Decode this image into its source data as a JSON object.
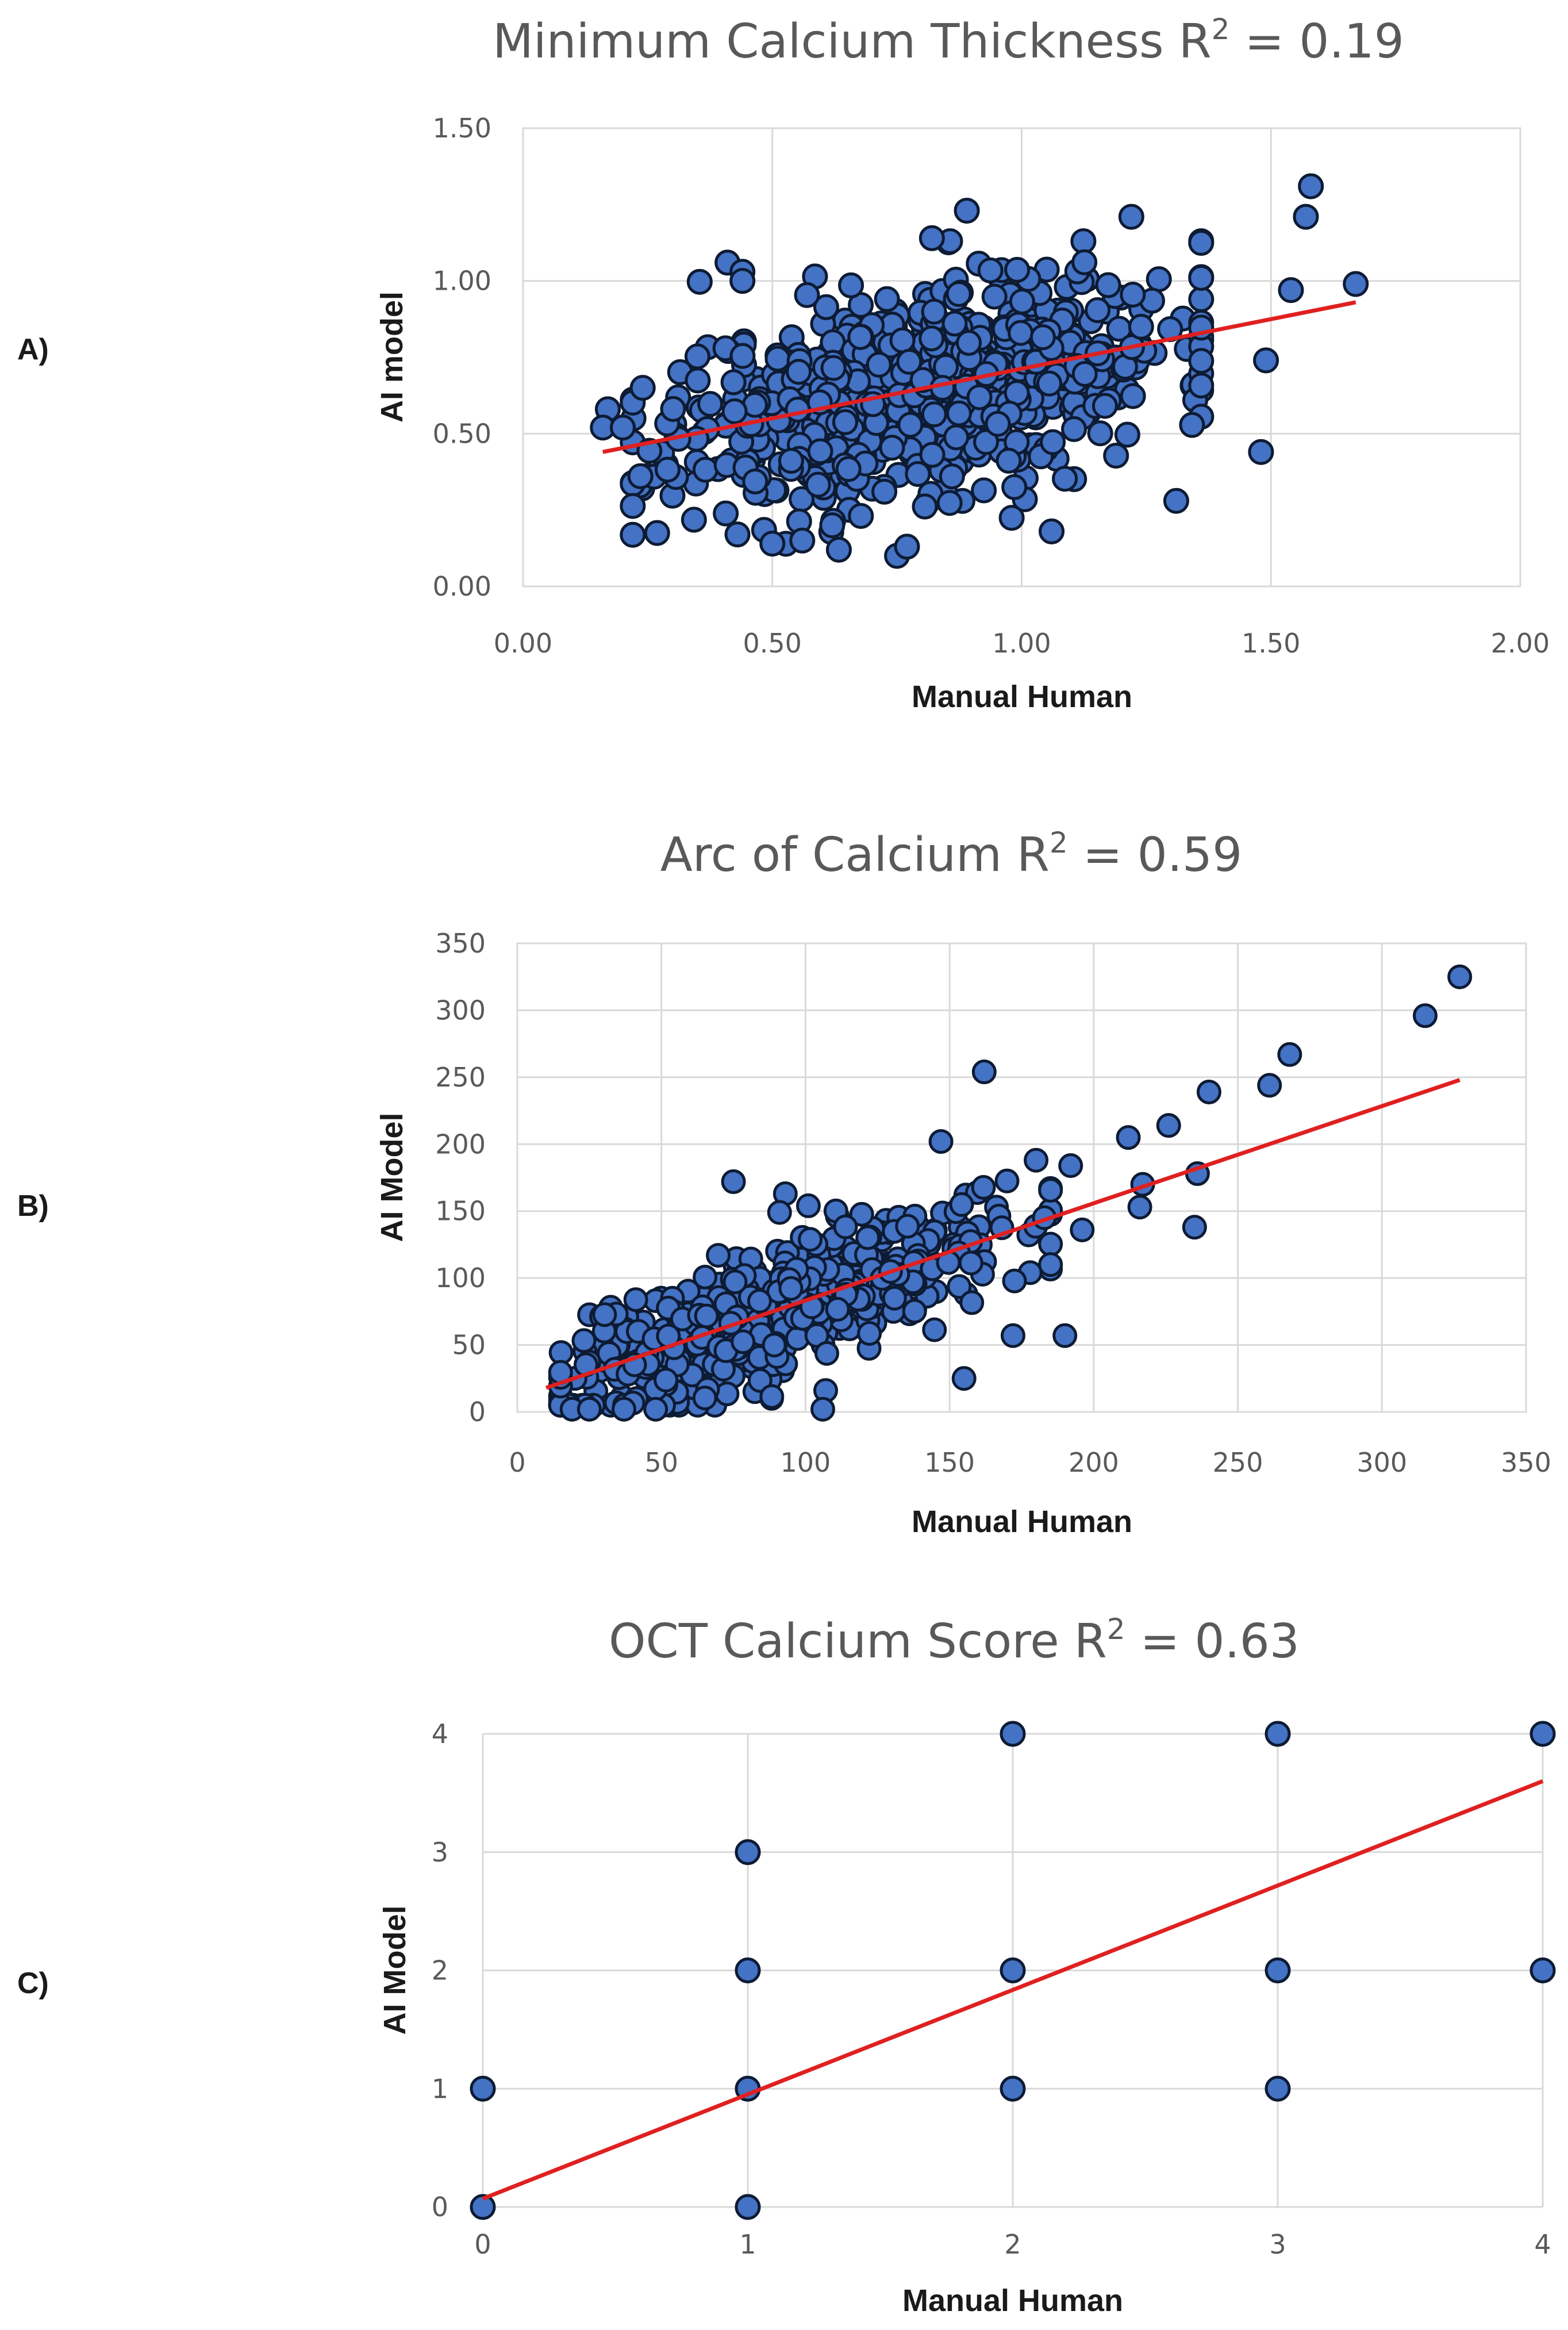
{
  "chart_data": [
    {
      "type": "scatter",
      "panel": "A)",
      "title": "Minimum Calcium Thickness R",
      "title_sup": "2",
      "title_suffix": " = 0.19",
      "xlabel": "Manual Human",
      "ylabel": "AI model",
      "xlim": [
        0,
        2
      ],
      "ylim": [
        0,
        1.5
      ],
      "xticks": [
        "0.00",
        "0.50",
        "1.00",
        "1.50",
        "2.00"
      ],
      "xtick_values": [
        0,
        0.5,
        1,
        1.5,
        2
      ],
      "yticks": [
        "0.00",
        "0.50",
        "1.00",
        "1.50"
      ],
      "ytick_values": [
        0,
        0.5,
        1,
        1.5
      ],
      "grid": true,
      "legend": "none",
      "trendline": {
        "x": [
          0.16,
          1.67
        ],
        "y": [
          0.44,
          0.93
        ]
      },
      "outliers": {
        "x": [
          1.58,
          1.57,
          1.67,
          1.49,
          1.54,
          1.48,
          1.31,
          0.89,
          0.82,
          1.22,
          0.41,
          0.44,
          0.44,
          0.62,
          1.06,
          0.75,
          0.77,
          0.56,
          0.5,
          0.43,
          0.17,
          0.16,
          0.24,
          0.2
        ],
        "y": [
          1.31,
          1.21,
          0.99,
          0.74,
          0.97,
          0.44,
          0.28,
          1.23,
          1.14,
          1.21,
          1.06,
          1.03,
          1.0,
          0.2,
          0.18,
          0.1,
          0.13,
          0.15,
          0.14,
          0.17,
          0.58,
          0.52,
          0.65,
          0.52
        ]
      },
      "cloud": {
        "count": 700,
        "seed": 11,
        "x_mean": 0.8,
        "x_sd": 0.25,
        "x_min": 0.22,
        "x_max": 1.36,
        "slope": 0.32,
        "intercept": 0.39,
        "y_sd": 0.17,
        "y_min": 0.12,
        "y_max": 1.13
      }
    },
    {
      "type": "scatter",
      "panel": "B)",
      "title": "Arc of Calcium R",
      "title_sup": "2",
      "title_suffix": " = 0.59",
      "xlabel": "Manual Human",
      "ylabel": "AI Model",
      "xlim": [
        0,
        350
      ],
      "ylim": [
        0,
        350
      ],
      "xticks": [
        "0",
        "50",
        "100",
        "150",
        "200",
        "250",
        "300",
        "350"
      ],
      "xtick_values": [
        0,
        50,
        100,
        150,
        200,
        250,
        300,
        350
      ],
      "yticks": [
        "0",
        "50",
        "100",
        "150",
        "200",
        "250",
        "300",
        "350"
      ],
      "ytick_values": [
        0,
        50,
        100,
        150,
        200,
        250,
        300,
        350
      ],
      "grid": true,
      "legend": "none",
      "trendline": {
        "x": [
          10,
          327
        ],
        "y": [
          18,
          248
        ]
      },
      "outliers": {
        "x": [
          327,
          315,
          268,
          261,
          240,
          236,
          235,
          226,
          217,
          216,
          212,
          162,
          147,
          192,
          196,
          190,
          172,
          180,
          155,
          107,
          106,
          48,
          19,
          25,
          37,
          75,
          93,
          101,
          91
        ],
        "y": [
          325,
          296,
          267,
          244,
          239,
          178,
          138,
          214,
          170,
          153,
          205,
          254,
          202,
          184,
          136,
          57,
          57,
          188,
          25,
          16,
          2,
          2,
          2,
          2,
          2,
          172,
          163,
          154,
          149
        ]
      },
      "cloud": {
        "count": 520,
        "seed": 7,
        "x_mean": 90,
        "x_sd": 38,
        "x_min": 15,
        "x_max": 185,
        "slope": 0.72,
        "intercept": 10,
        "y_sd": 24,
        "y_min": 5,
        "y_max": 175
      }
    },
    {
      "type": "scatter",
      "panel": "C)",
      "title": "OCT Calcium Score R",
      "title_sup": "2",
      "title_suffix": " = 0.63",
      "xlabel": "Manual Human",
      "ylabel": "AI Model",
      "xlim": [
        0,
        4
      ],
      "ylim": [
        0,
        4
      ],
      "xticks": [
        "0",
        "1",
        "2",
        "3",
        "4"
      ],
      "xtick_values": [
        0,
        1,
        2,
        3,
        4
      ],
      "yticks": [
        "0",
        "1",
        "2",
        "3",
        "4"
      ],
      "ytick_values": [
        0,
        1,
        2,
        3,
        4
      ],
      "grid": true,
      "legend": "none",
      "trendline": {
        "x": [
          0,
          4
        ],
        "y": [
          0.07,
          3.6
        ]
      },
      "points": {
        "x": [
          0,
          0,
          1,
          1,
          1,
          1,
          2,
          2,
          2,
          3,
          3,
          3,
          4,
          4
        ],
        "y": [
          0,
          1,
          0,
          1,
          2,
          3,
          1,
          2,
          4,
          1,
          2,
          4,
          2,
          4
        ]
      }
    }
  ]
}
